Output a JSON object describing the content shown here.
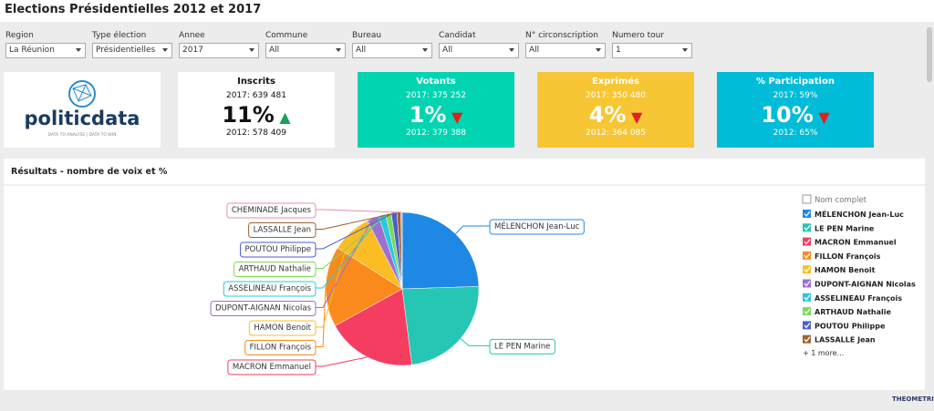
{
  "header": {
    "title": "Elections Présidentielles 2012 et 2017"
  },
  "filters": [
    {
      "label": "Region",
      "value": "La Réunion"
    },
    {
      "label": "Type élection",
      "value": "Présidentielles"
    },
    {
      "label": "Annee",
      "value": "2017"
    },
    {
      "label": "Commune",
      "value": "All"
    },
    {
      "label": "Bureau",
      "value": "All"
    },
    {
      "label": "Candidat",
      "value": "All"
    },
    {
      "label": "N° circonscription",
      "value": "All"
    },
    {
      "label": "Numero tour",
      "value": "1"
    }
  ],
  "logo": {
    "name": "politicdata",
    "tagline": "DATA TO ANALYSE | DATA TO WIN"
  },
  "kpis": [
    {
      "title": "Inscrits",
      "current": "2017: 639 481",
      "change": "11%",
      "trend": "up",
      "previous": "2012: 578 409",
      "color": "#ffffff"
    },
    {
      "title": "Votants",
      "current": "2017: 375 252",
      "change": "1%",
      "trend": "down",
      "previous": "2012: 379 388",
      "color": "#00d4b1"
    },
    {
      "title": "Exprimés",
      "current": "2017: 350 480",
      "change": "4%",
      "trend": "down",
      "previous": "2012: 364 085",
      "color": "#f7c634"
    },
    {
      "title": "% Participation",
      "current": "2017: 59%",
      "change": "10%",
      "trend": "down",
      "previous": "2012: 65%",
      "color": "#00bcd8"
    }
  ],
  "chart_data": {
    "type": "pie",
    "title": "Résultats - nombre de voix et %",
    "legend_title": "Nom complet",
    "legend_more": "+ 1 more...",
    "categories": [
      "MÉLENCHON Jean-Luc",
      "LE PEN Marine",
      "MACRON Emmanuel",
      "FILLON François",
      "HAMON Benoit",
      "DUPONT-AIGNAN Nicolas",
      "ASSELINEAU François",
      "ARTHAUD Nathalie",
      "POUTOU Philippe",
      "LASSALLE Jean",
      "CHEMINADE Jacques"
    ],
    "values": [
      24.5,
      23.5,
      19,
      17,
      8.5,
      2.5,
      1.5,
      1.2,
      1.2,
      0.8,
      0.3
    ],
    "colors": [
      "#1e88e5",
      "#26c6b4",
      "#f53d62",
      "#fb8a1c",
      "#fbbd24",
      "#9c6fd0",
      "#26c9e0",
      "#7cd957",
      "#4a5ed0",
      "#a0612b",
      "#e98bb8"
    ]
  },
  "footer": {
    "brand": "THEOMETRICS"
  }
}
